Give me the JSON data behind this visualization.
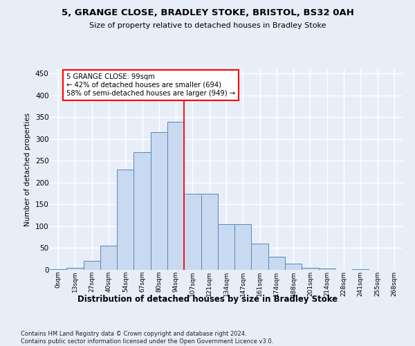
{
  "title1": "5, GRANGE CLOSE, BRADLEY STOKE, BRISTOL, BS32 0AH",
  "title2": "Size of property relative to detached houses in Bradley Stoke",
  "xlabel": "Distribution of detached houses by size in Bradley Stoke",
  "ylabel": "Number of detached properties",
  "footnote": "Contains HM Land Registry data © Crown copyright and database right 2024.\nContains public sector information licensed under the Open Government Licence v3.0.",
  "bin_labels": [
    "0sqm",
    "13sqm",
    "27sqm",
    "40sqm",
    "54sqm",
    "67sqm",
    "80sqm",
    "94sqm",
    "107sqm",
    "121sqm",
    "134sqm",
    "147sqm",
    "161sqm",
    "174sqm",
    "188sqm",
    "201sqm",
    "214sqm",
    "228sqm",
    "241sqm",
    "255sqm",
    "268sqm"
  ],
  "bar_values": [
    1,
    5,
    20,
    55,
    230,
    270,
    315,
    340,
    175,
    175,
    105,
    105,
    60,
    30,
    15,
    5,
    3,
    0,
    1,
    0,
    0
  ],
  "bar_color": "#c9d9f0",
  "bar_edge_color": "#5588bb",
  "vline_x_index": 7.5,
  "vline_color": "red",
  "annotation_text": "5 GRANGE CLOSE: 99sqm\n← 42% of detached houses are smaller (694)\n58% of semi-detached houses are larger (949) →",
  "annotation_box_color": "white",
  "annotation_box_edge": "red",
  "bg_color": "#e8eef8",
  "grid_color": "white",
  "ylim": [
    0,
    460
  ],
  "yticks": [
    0,
    50,
    100,
    150,
    200,
    250,
    300,
    350,
    400,
    450
  ]
}
